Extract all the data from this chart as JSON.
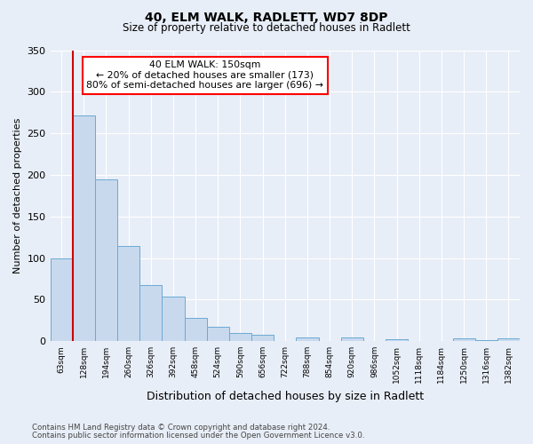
{
  "title": "40, ELM WALK, RADLETT, WD7 8DP",
  "subtitle": "Size of property relative to detached houses in Radlett",
  "xlabel": "Distribution of detached houses by size in Radlett",
  "ylabel": "Number of detached properties",
  "bin_labels": [
    "63sqm",
    "128sqm",
    "194sqm",
    "260sqm",
    "326sqm",
    "392sqm",
    "458sqm",
    "524sqm",
    "590sqm",
    "656sqm",
    "722sqm",
    "788sqm",
    "854sqm",
    "920sqm",
    "986sqm",
    "1052sqm",
    "1118sqm",
    "1184sqm",
    "1250sqm",
    "1316sqm",
    "1382sqm"
  ],
  "bar_heights": [
    100,
    272,
    195,
    115,
    68,
    54,
    28,
    17,
    10,
    8,
    0,
    4,
    0,
    4,
    0,
    2,
    0,
    0,
    3,
    1,
    3
  ],
  "bar_color": "#c8d9ee",
  "bar_edge_color": "#6aaad4",
  "vline_color": "#cc0000",
  "vline_pos": 0.5,
  "ylim": [
    0,
    350
  ],
  "yticks": [
    0,
    50,
    100,
    150,
    200,
    250,
    300,
    350
  ],
  "annotation_title": "40 ELM WALK: 150sqm",
  "annotation_line1": "← 20% of detached houses are smaller (173)",
  "annotation_line2": "80% of semi-detached houses are larger (696) →",
  "footnote1": "Contains HM Land Registry data © Crown copyright and database right 2024.",
  "footnote2": "Contains public sector information licensed under the Open Government Licence v3.0.",
  "bg_color": "#e8eef7",
  "plot_bg_color": "#e8eef7"
}
